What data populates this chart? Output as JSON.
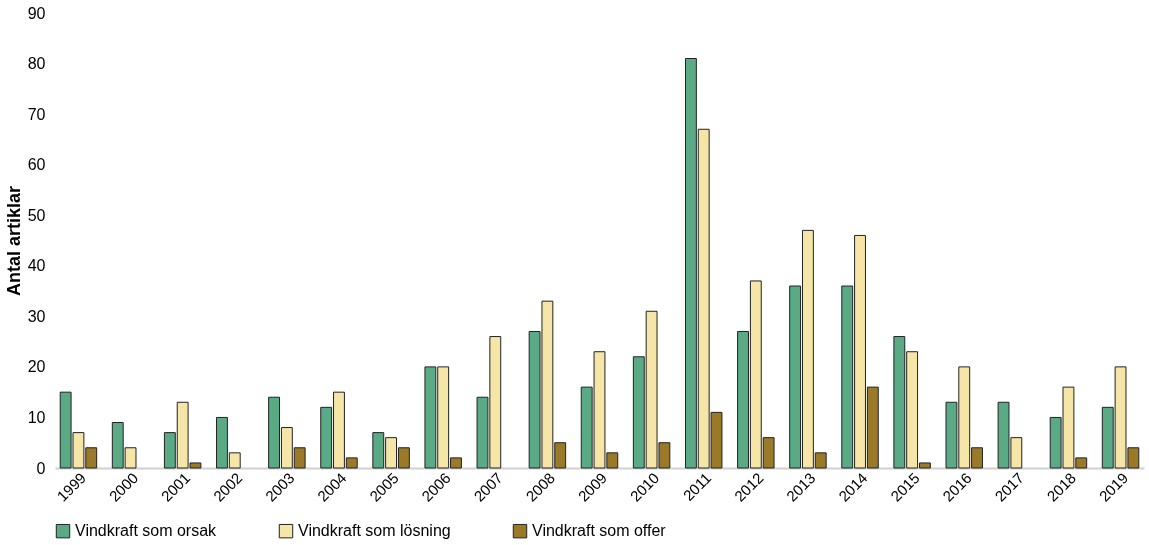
{
  "chart_data": {
    "type": "bar",
    "ylabel": "Antal artiklar",
    "categories": [
      "1999",
      "2000",
      "2001",
      "2002",
      "2003",
      "2004",
      "2005",
      "2006",
      "2007",
      "2008",
      "2009",
      "2010",
      "2011",
      "2012",
      "2013",
      "2014",
      "2015",
      "2016",
      "2017",
      "2018",
      "2019"
    ],
    "series": [
      {
        "name": "Vindkraft som orsak",
        "color": "#5aaa86",
        "values": [
          15,
          9,
          7,
          10,
          14,
          12,
          7,
          20,
          14,
          27,
          16,
          22,
          81,
          27,
          36,
          36,
          26,
          13,
          13,
          10,
          12
        ]
      },
      {
        "name": "Vindkraft som lösning",
        "color": "#f5e6a8",
        "values": [
          7,
          4,
          13,
          3,
          8,
          15,
          6,
          20,
          26,
          33,
          23,
          31,
          67,
          37,
          47,
          46,
          23,
          20,
          6,
          16,
          20
        ]
      },
      {
        "name": "Vindkraft som offer",
        "color": "#9a7a28",
        "values": [
          4,
          null,
          1,
          null,
          4,
          2,
          4,
          2,
          null,
          5,
          3,
          5,
          11,
          6,
          3,
          16,
          1,
          4,
          null,
          2,
          4
        ]
      }
    ],
    "ylim": [
      0,
      90
    ],
    "yticks": [
      0,
      10,
      20,
      30,
      40,
      50,
      60,
      70,
      80,
      90
    ],
    "grid": false,
    "legend": "bottom"
  }
}
